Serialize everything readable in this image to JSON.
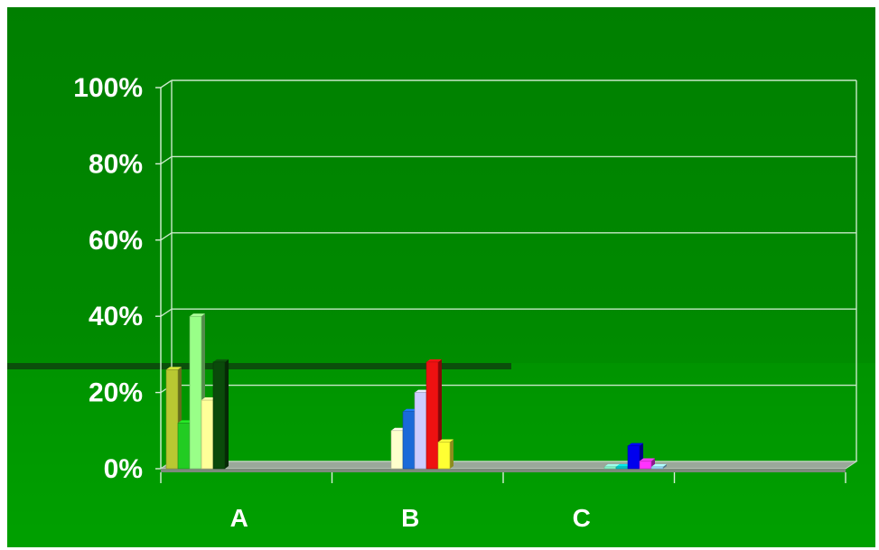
{
  "chart_data": {
    "type": "bar",
    "title": "",
    "xlabel": "",
    "ylabel": "",
    "ylim": [
      0,
      100
    ],
    "y_ticks": [
      "0%",
      "20%",
      "40%",
      "60%",
      "80%",
      "100%"
    ],
    "categories": [
      "A",
      "B",
      "C",
      ""
    ],
    "grid": true,
    "legend": "none",
    "three_d": true,
    "groups": [
      {
        "category": "A",
        "bars": [
          {
            "value": 26,
            "color": "#b8c832"
          },
          {
            "value": 12,
            "color": "#22cc22"
          },
          {
            "value": 40,
            "color": "#99ff88"
          },
          {
            "value": 18,
            "color": "#ffff99"
          },
          {
            "value": 28,
            "color": "#0a4a0a"
          }
        ]
      },
      {
        "category": "B",
        "bars": [
          {
            "value": 10,
            "color": "#ffffcc"
          },
          {
            "value": 15,
            "color": "#1a6ad8"
          },
          {
            "value": 20,
            "color": "#ccccff"
          },
          {
            "value": 28,
            "color": "#ee1111"
          },
          {
            "value": 7,
            "color": "#ffff33"
          }
        ]
      },
      {
        "category": "C",
        "bars": [
          {
            "value": 0.5,
            "color": "#88ffcc"
          },
          {
            "value": 0.5,
            "color": "#00cccc"
          },
          {
            "value": 6,
            "color": "#0000ee"
          },
          {
            "value": 2,
            "color": "#ff33ff"
          },
          {
            "value": 0.5,
            "color": "#99ddff"
          }
        ]
      },
      {
        "category": "",
        "bars": []
      }
    ]
  }
}
